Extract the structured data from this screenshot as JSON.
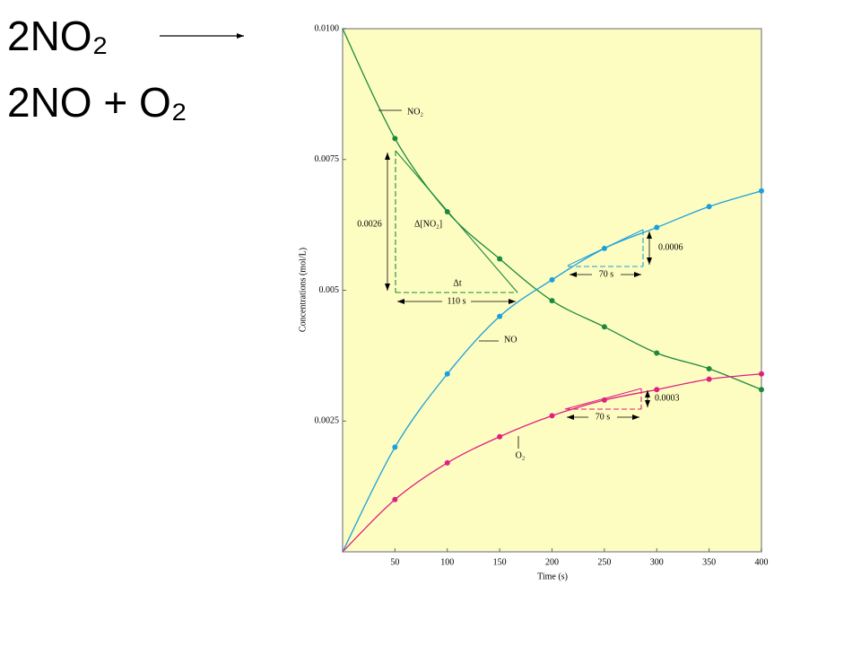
{
  "reaction": {
    "reactant": "2NO₂",
    "products": "2NO + O₂"
  },
  "chart_data": {
    "type": "line",
    "x_label": "Time (s)",
    "y_label": "Concentrations (mol/L)",
    "x": [
      0,
      50,
      100,
      150,
      200,
      250,
      300,
      350,
      400
    ],
    "xlim": [
      0,
      400
    ],
    "xticks": [
      50,
      100,
      150,
      200,
      250,
      300,
      350,
      400
    ],
    "ylim": [
      0,
      0.01
    ],
    "yticks": [
      0.0025,
      0.005,
      0.0075,
      {
        "value": 0.01,
        "label": "0.0100"
      }
    ],
    "series": [
      {
        "name": "NO₂",
        "color": "#1b8a3c",
        "values": [
          0.01,
          0.0079,
          0.0065,
          0.0056,
          0.0048,
          0.0043,
          0.0038,
          0.0035,
          0.0031
        ]
      },
      {
        "name": "NO",
        "color": "#1ba0dc",
        "values": [
          0,
          0.002,
          0.0034,
          0.0045,
          0.0052,
          0.0058,
          0.0062,
          0.0066,
          0.0069
        ]
      },
      {
        "name": "O₂",
        "color": "#e0207f",
        "values": [
          0,
          0.001,
          0.0017,
          0.0022,
          0.0026,
          0.0029,
          0.0031,
          0.0033,
          0.0034
        ]
      }
    ],
    "annotations": [
      "0.0026",
      "Δ[NO₂]",
      "Δt",
      "110 s",
      "70 s",
      "0.0006",
      "70 s",
      "0.0003"
    ]
  }
}
